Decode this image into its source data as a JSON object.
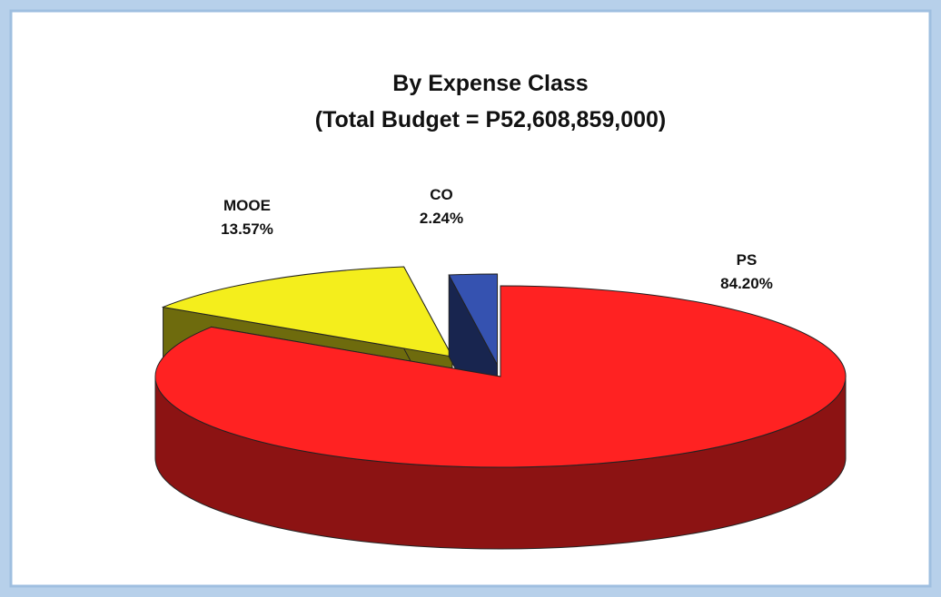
{
  "chart_data": {
    "type": "pie3d",
    "title": "By Expense Class",
    "subtitle": "(Total Budget = P52,608,859,000)",
    "categories": [
      "PS",
      "MOOE",
      "CO"
    ],
    "values": [
      84.2,
      13.57,
      2.24
    ],
    "value_labels": [
      "84.20%",
      "13.57%",
      "2.24%"
    ],
    "colors": [
      "#ff2222",
      "#f4ee1c",
      "#3552b0"
    ]
  }
}
